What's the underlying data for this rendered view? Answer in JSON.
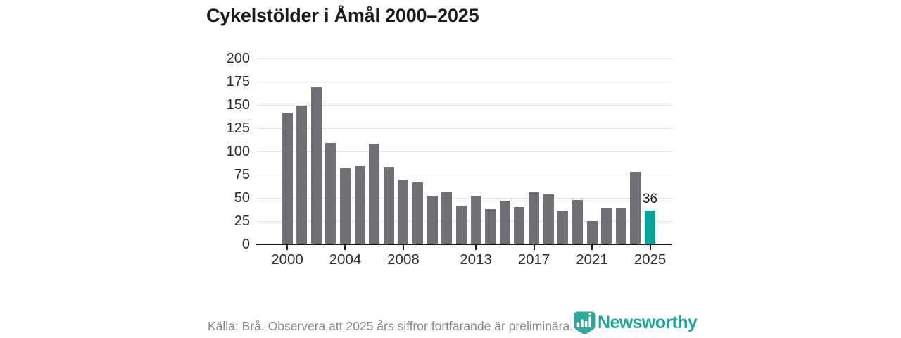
{
  "title": "Cykelstölder i Åmål 2000–2025",
  "chart_data": {
    "type": "bar",
    "title": "Cykelstölder i Åmål 2000–2025",
    "categories": [
      2000,
      2001,
      2002,
      2003,
      2004,
      2005,
      2006,
      2007,
      2008,
      2009,
      2010,
      2011,
      2012,
      2013,
      2014,
      2015,
      2016,
      2017,
      2018,
      2019,
      2020,
      2021,
      2022,
      2023,
      2024,
      2025
    ],
    "values": [
      142,
      149,
      169,
      109,
      82,
      84,
      108,
      83,
      70,
      67,
      52,
      57,
      42,
      52,
      38,
      47,
      40,
      56,
      54,
      36,
      48,
      25,
      39,
      39,
      78,
      36
    ],
    "xlabel": "",
    "ylabel": "",
    "ylim": [
      0,
      200
    ],
    "yticks": [
      0,
      25,
      50,
      75,
      100,
      125,
      150,
      175,
      200
    ],
    "xticks": [
      {
        "index": 0,
        "label": "2000"
      },
      {
        "index": 4,
        "label": "2004"
      },
      {
        "index": 8,
        "label": "2008"
      },
      {
        "index": 13,
        "label": "2013"
      },
      {
        "index": 17,
        "label": "2017"
      },
      {
        "index": 21,
        "label": "2021"
      },
      {
        "index": 25,
        "label": "2025"
      }
    ],
    "grid": true,
    "legend": false,
    "bar_color": "#6f6f76",
    "highlight_index": 25,
    "highlight_color": "#00a59b",
    "highlight_value_label": "36"
  },
  "footer": {
    "source_note": "Källa: Brå. Observera att 2025 års siffror fortfarande är preliminära."
  },
  "branding": {
    "name": "Newsworthy",
    "logo_icon": "newsworthy-shield-barchart-icon",
    "accent_color": "#21a69a"
  }
}
